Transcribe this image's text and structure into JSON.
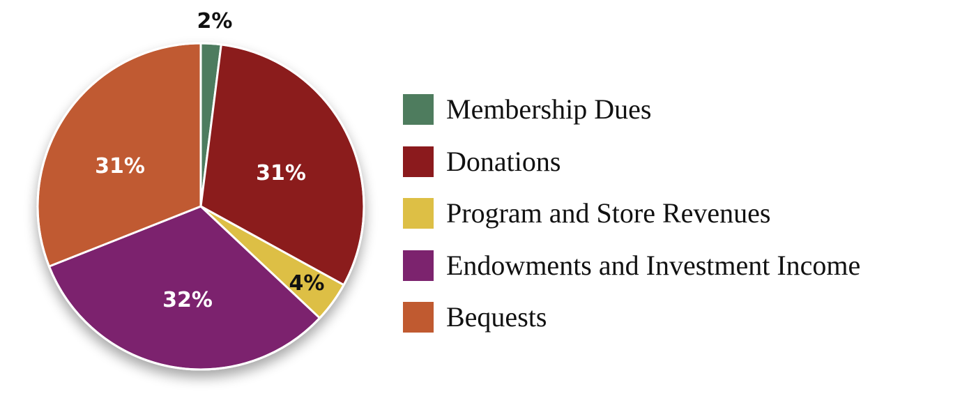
{
  "chart_data": {
    "type": "pie",
    "title": "",
    "start_angle_deg_clockwise_from_top": 0,
    "slices": [
      {
        "label": "Membership Dues",
        "value": 2,
        "display": "2%",
        "color": "#4e7c5e",
        "label_color": "#111111"
      },
      {
        "label": "Donations",
        "value": 31,
        "display": "31%",
        "color": "#8b1a1d",
        "label_color": "#ffffff"
      },
      {
        "label": "Program and Store Revenues",
        "value": 4,
        "display": "4%",
        "color": "#ddbf45",
        "label_color": "#111111"
      },
      {
        "label": "Endowments and Investment Income",
        "value": 32,
        "display": "32%",
        "color": "#7c236e",
        "label_color": "#ffffff"
      },
      {
        "label": "Bequests",
        "value": 31,
        "display": "31%",
        "color": "#c05a30",
        "label_color": "#ffffff"
      }
    ],
    "categories": [
      "Membership Dues",
      "Donations",
      "Program and Store Revenues",
      "Endowments and Investment Income",
      "Bequests"
    ],
    "values": [
      2,
      31,
      4,
      32,
      31
    ],
    "units": "percent",
    "legend_position": "right",
    "grid": false
  },
  "legend": {
    "items": [
      {
        "label": "Membership Dues",
        "color": "#4e7c5e"
      },
      {
        "label": "Donations",
        "color": "#8b1a1d"
      },
      {
        "label": "Program and Store Revenues",
        "color": "#ddbf45"
      },
      {
        "label": "Endowments and Investment Income",
        "color": "#7c236e"
      },
      {
        "label": "Bequests",
        "color": "#c05a30"
      }
    ]
  },
  "labels": {
    "membership": "2%",
    "donations": "31%",
    "program": "4%",
    "endowments": "32%",
    "bequests": "31%"
  }
}
